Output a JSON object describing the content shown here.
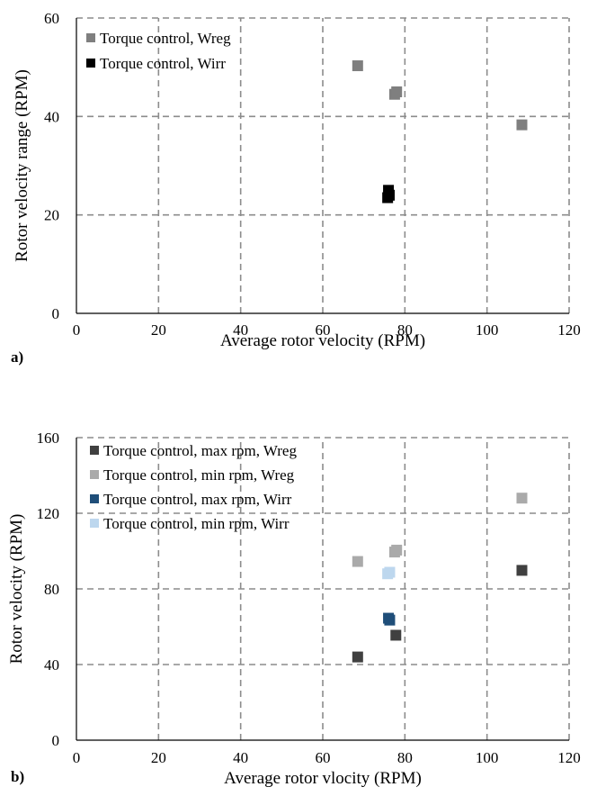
{
  "chart_data": [
    {
      "type": "scatter",
      "panel_label": "a)",
      "xlabel": "Average rotor velocity (RPM)",
      "ylabel": "Rotor velocity range (RPM)",
      "xlim": [
        0,
        120
      ],
      "ylim": [
        0,
        60
      ],
      "xticks": [
        0,
        20,
        40,
        60,
        80,
        100,
        120
      ],
      "yticks": [
        0,
        20,
        40,
        60
      ],
      "xtick_labels": [
        "0",
        "20",
        "40",
        "60",
        "80",
        "100",
        "120"
      ],
      "ytick_labels": [
        "0",
        "20",
        "40",
        "60"
      ],
      "grid": true,
      "legend_position": "top-left",
      "series": [
        {
          "name": "Torque control, Wreg",
          "color": "#7f7f7f",
          "points": [
            [
              68.5,
              50.3
            ],
            [
              77.5,
              44.5
            ],
            [
              78,
              45
            ],
            [
              108.5,
              38.3
            ]
          ]
        },
        {
          "name": "Torque control, Wirr",
          "color": "#000000",
          "points": [
            [
              76,
              25
            ],
            [
              75.8,
              23.5
            ],
            [
              76.2,
              24
            ]
          ]
        }
      ]
    },
    {
      "type": "scatter",
      "panel_label": "b)",
      "xlabel": "Average rotor vlocity (RPM)",
      "ylabel": "Rotor velocity (RPM)",
      "xlim": [
        0,
        120
      ],
      "ylim": [
        0,
        160
      ],
      "xticks": [
        0,
        20,
        40,
        60,
        80,
        100,
        120
      ],
      "yticks": [
        0,
        40,
        80,
        120,
        160
      ],
      "xtick_labels": [
        "0",
        "20",
        "40",
        "60",
        "80",
        "100",
        "120"
      ],
      "ytick_labels": [
        "0",
        "40",
        "80",
        "120",
        "160"
      ],
      "grid": true,
      "legend_position": "top-left",
      "series": [
        {
          "name": "Torque control, max rpm, Wreg",
          "color": "#404040",
          "points": [
            [
              68.5,
              44
            ],
            [
              77.8,
              55.5
            ],
            [
              108.5,
              89.8
            ]
          ]
        },
        {
          "name": "Torque control, min rpm, Wreg",
          "color": "#aaaaaa",
          "points": [
            [
              68.5,
              94.5
            ],
            [
              77.5,
              99.5
            ],
            [
              78,
              100.5
            ],
            [
              108.5,
              128
            ]
          ]
        },
        {
          "name": "Torque control, max rpm, Wirr",
          "color": "#1f4e79",
          "points": [
            [
              76,
              64.5
            ],
            [
              76.3,
              63.5
            ]
          ]
        },
        {
          "name": "Torque control, min rpm, Wirr",
          "color": "#bdd7ee",
          "points": [
            [
              75.8,
              88
            ],
            [
              76.3,
              88.8
            ]
          ]
        }
      ]
    }
  ]
}
